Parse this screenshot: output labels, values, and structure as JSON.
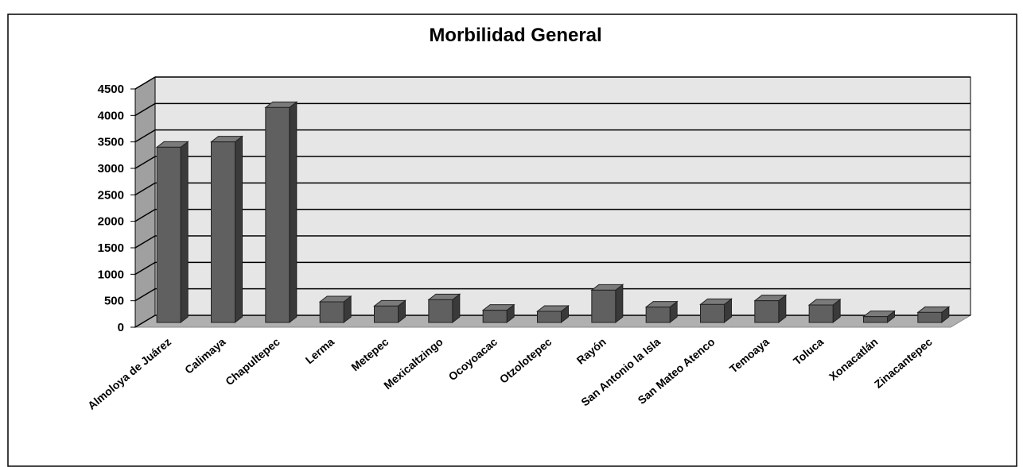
{
  "chart_data": {
    "type": "bar3d",
    "title": "Morbilidad General",
    "categories": [
      "Almoloya de Juárez",
      "Calimaya",
      "Chapultepec",
      "Lerma",
      "Metepec",
      "Mexicaltzingo",
      "Ocoyoacac",
      "Otzolotepec",
      "Rayón",
      "San Antonio la Isla",
      "San Mateo Atenco",
      "Temoaya",
      "Toluca",
      "Xonacatlán",
      "Zinacantepec"
    ],
    "values": [
      3400,
      3500,
      4150,
      480,
      400,
      520,
      320,
      300,
      700,
      380,
      430,
      500,
      420,
      200,
      280
    ],
    "color": "#606060",
    "ylim": [
      0,
      4500
    ],
    "yticks": [
      0,
      500,
      1000,
      1500,
      2000,
      2500,
      3000,
      3500,
      4000,
      4500
    ],
    "grid": true
  }
}
